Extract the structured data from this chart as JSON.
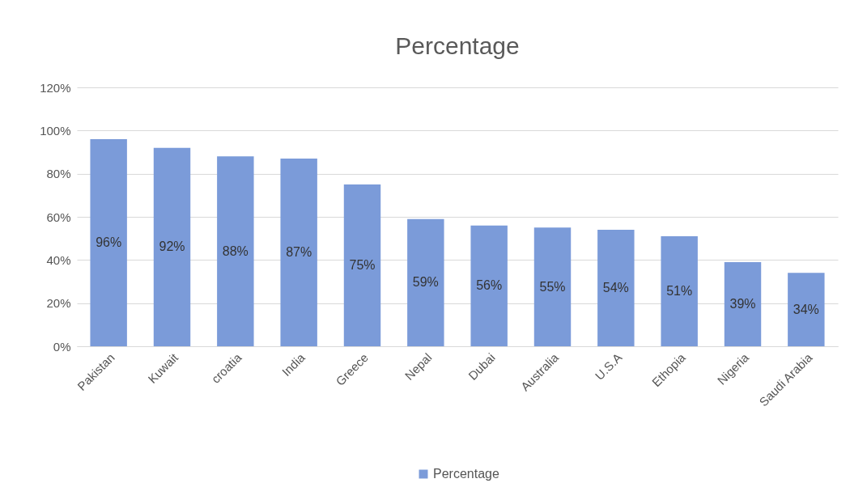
{
  "chart_data": {
    "type": "bar",
    "title": "Percentage",
    "categories": [
      "Pakistan",
      "Kuwait",
      "croatia",
      "India",
      "Greece",
      "Nepal",
      "Dubai",
      "Australia",
      "U.S.A",
      "Ethopia",
      "Nigeria",
      "Saudi Arabia"
    ],
    "series": [
      {
        "name": "Percentage",
        "color": "#7b9bd9",
        "values": [
          96,
          92,
          88,
          87,
          75,
          59,
          56,
          55,
          54,
          51,
          39,
          34
        ],
        "value_labels": [
          "96%",
          "92%",
          "88%",
          "87%",
          "75%",
          "59%",
          "56%",
          "55%",
          "54%",
          "51%",
          "39%",
          "34%"
        ]
      }
    ],
    "ylim": [
      0,
      120
    ],
    "yticks": [
      {
        "value": 0,
        "label": "0%"
      },
      {
        "value": 20,
        "label": "20%"
      },
      {
        "value": 40,
        "label": "40%"
      },
      {
        "value": 60,
        "label": "60%"
      },
      {
        "value": 80,
        "label": "80%"
      },
      {
        "value": 100,
        "label": "100%"
      },
      {
        "value": 120,
        "label": "120%"
      }
    ],
    "grid": "y",
    "legend": "bottom"
  }
}
